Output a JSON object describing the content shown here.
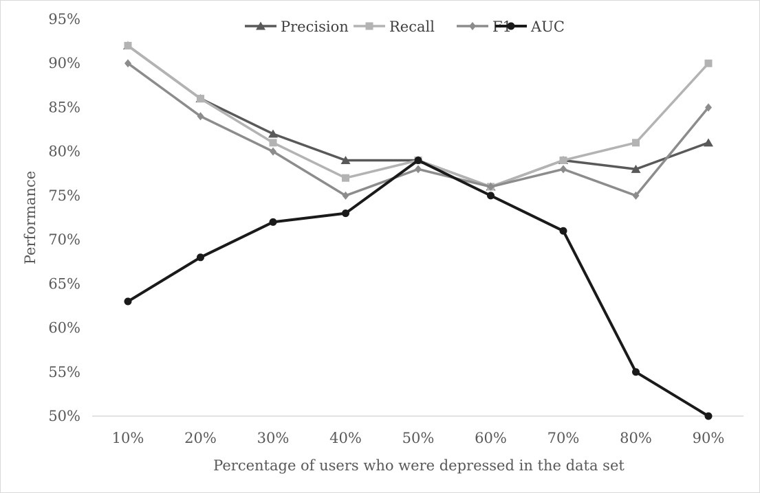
{
  "chart_data": {
    "type": "line",
    "title": "",
    "xlabel": "Percentage of users who were depressed in the data set",
    "ylabel": "Performance",
    "categories": [
      "10%",
      "20%",
      "30%",
      "40%",
      "50%",
      "60%",
      "70%",
      "80%",
      "90%"
    ],
    "ylim": [
      50,
      95
    ],
    "y_ticks": [
      50,
      55,
      60,
      65,
      70,
      75,
      80,
      85,
      90,
      95
    ],
    "y_tick_labels": [
      "50%",
      "55%",
      "60%",
      "65%",
      "70%",
      "75%",
      "80%",
      "85%",
      "90%",
      "95%"
    ],
    "grid": "horizontal baseline only",
    "legend_position": "top",
    "series": [
      {
        "name": "Precision",
        "marker": "triangle",
        "color": "#595959",
        "values": [
          92,
          86,
          82,
          79,
          79,
          76,
          79,
          78,
          81
        ]
      },
      {
        "name": "Recall",
        "marker": "square",
        "color": "#b3b3b3",
        "values": [
          92,
          86,
          81,
          77,
          79,
          76,
          79,
          81,
          90
        ]
      },
      {
        "name": "F1",
        "marker": "diamond",
        "color": "#8c8c8c",
        "values": [
          90,
          84,
          80,
          75,
          78,
          76,
          78,
          75,
          85
        ]
      },
      {
        "name": "AUC",
        "marker": "circle",
        "color": "#1a1a1a",
        "values": [
          63,
          68,
          72,
          73,
          79,
          75,
          71,
          55,
          50
        ]
      }
    ]
  }
}
